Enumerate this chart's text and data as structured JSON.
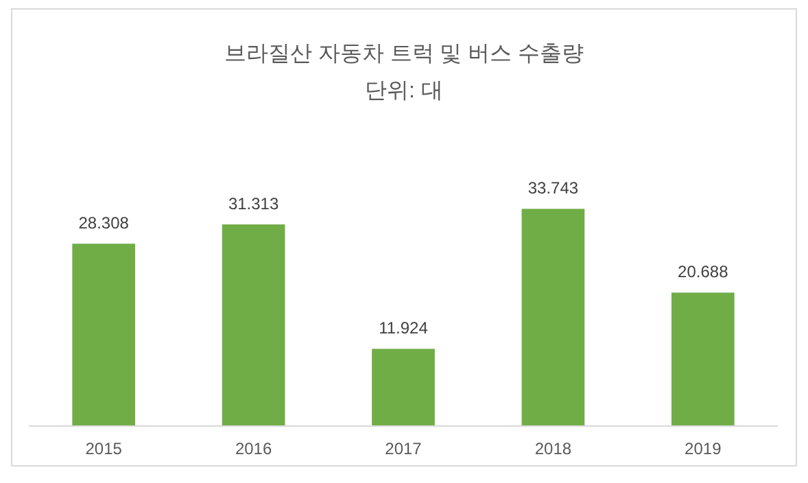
{
  "chart_data": {
    "type": "bar",
    "title": "브라질산 자동차 트럭 및 버스 수출량",
    "subtitle": "단위: 대",
    "categories": [
      "2015",
      "2016",
      "2017",
      "2018",
      "2019"
    ],
    "values": [
      28308,
      31313,
      11924,
      33743,
      20688
    ],
    "value_labels": [
      "28.308",
      "31.313",
      "11.924",
      "33.743",
      "20.688"
    ],
    "color": "#70ad47"
  }
}
